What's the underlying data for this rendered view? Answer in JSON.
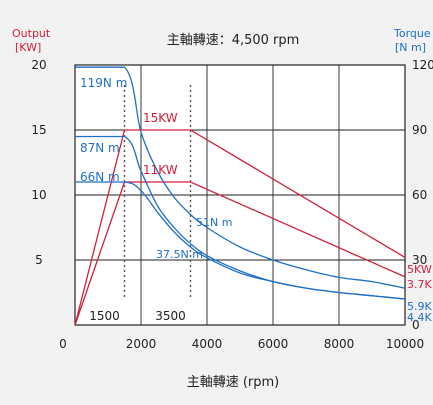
{
  "chart_data": {
    "type": "line",
    "title": "主軸轉速：4,500 rpm",
    "xlabel": "主軸轉速 (rpm)",
    "ylabel_left": [
      "Output",
      "[KW]"
    ],
    "ylabel_right": [
      "Torque",
      "[N m]"
    ],
    "xlim": [
      0,
      10000
    ],
    "ylim_left": [
      0,
      20
    ],
    "ylim_right": [
      0,
      120
    ],
    "x_ticks": [
      "0",
      "2000",
      "4000",
      "6000",
      "8000",
      "10000"
    ],
    "y_left_ticks": [
      "5",
      "10",
      "15",
      "20"
    ],
    "y_right_ticks": [
      "0",
      "30",
      "60",
      "90",
      "120"
    ],
    "grid": true,
    "markers": [
      {
        "x": 1500,
        "label": "1500"
      },
      {
        "x": 3500,
        "label": "3500"
      }
    ],
    "series": [
      {
        "kind": "output",
        "axis": "left",
        "color": "#d21f3c",
        "x": [
          0,
          1500,
          3500,
          10000
        ],
        "y": [
          0,
          15,
          15,
          5.2
        ],
        "end_label": "5KW",
        "plateau_label": "15KW"
      },
      {
        "kind": "output",
        "axis": "left",
        "color": "#d21f3c",
        "x": [
          0,
          1500,
          3500,
          10000
        ],
        "y": [
          0,
          11,
          11,
          3.7
        ],
        "end_label": "3.7K",
        "plateau_label": "11KW"
      },
      {
        "kind": "torque",
        "axis": "right",
        "color": "#1f6fc6",
        "x": [
          0,
          1500,
          2000,
          2500,
          3000,
          3500,
          4000,
          5000,
          6000,
          7000,
          8000,
          9000,
          10000
        ],
        "y": [
          119,
          119,
          89,
          71,
          59,
          51,
          45,
          36,
          30,
          25.5,
          22,
          20,
          17
        ],
        "start_label": "119N m",
        "mid_label": "51N m",
        "end_label": "5.9K"
      },
      {
        "kind": "torque",
        "axis": "right",
        "color": "#1f6fc6",
        "x": [
          0,
          1500,
          2000,
          2500,
          3000,
          3500,
          4000,
          5000,
          6000,
          7000,
          8000,
          9000,
          10000
        ],
        "y": [
          87,
          87,
          71,
          55,
          45,
          37.5,
          32,
          25,
          20,
          17,
          15,
          13.5,
          12
        ],
        "start_label": "87N m",
        "mid_label": "37.5N m",
        "end_label": "4.4K"
      },
      {
        "kind": "torque",
        "axis": "right",
        "color": "#1f6fc6",
        "x": [
          0,
          1500,
          2000,
          2500,
          3000,
          3500,
          4000,
          5000,
          6000,
          7000,
          8000,
          9000,
          10000
        ],
        "y": [
          66,
          66,
          62,
          52,
          43,
          36,
          31,
          24,
          20,
          17,
          15,
          13.5,
          12
        ],
        "start_label": "66N m"
      }
    ]
  }
}
